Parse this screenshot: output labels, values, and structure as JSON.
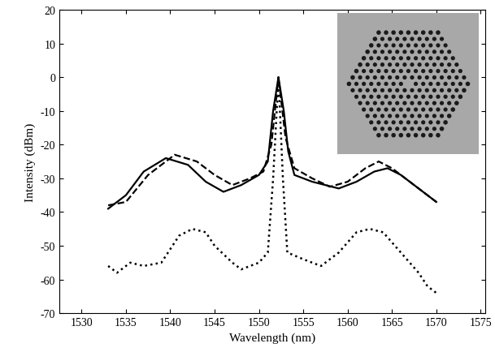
{
  "chart_data": {
    "type": "line",
    "x_label": "Wavelength (nm)",
    "y_label": "Intensity (dBm)",
    "xlim": [
      1527.5,
      1575.5
    ],
    "xticks": [
      1530,
      1535,
      1540,
      1545,
      1550,
      1555,
      1560,
      1565,
      1570,
      1575
    ],
    "ylim": [
      -70,
      20
    ],
    "yticks": [
      -70,
      -60,
      -50,
      -40,
      -30,
      -20,
      -10,
      0,
      10,
      20
    ],
    "grid": false,
    "series": [
      {
        "color": "#000000",
        "line_style": "solid",
        "x": [
          1533,
          1535,
          1537,
          1539.5,
          1542,
          1544,
          1546,
          1548,
          1550,
          1551,
          1551.6,
          1552.2,
          1552.8,
          1553.3,
          1554,
          1556,
          1559,
          1561,
          1563,
          1564.5,
          1566,
          1568,
          1570
        ],
        "values": [
          -39,
          -35,
          -28,
          -24,
          -26,
          -31,
          -34,
          -32,
          -29,
          -25,
          -10,
          0,
          -10,
          -22,
          -29,
          -31,
          -33,
          -31,
          -28,
          -27,
          -29,
          -33,
          -37
        ]
      },
      {
        "color": "#000000",
        "line_style": "dashed",
        "x": [
          1533,
          1535,
          1537.5,
          1540.5,
          1543,
          1545,
          1547,
          1549,
          1550.5,
          1551.4,
          1552.2,
          1553,
          1554,
          1556,
          1558,
          1560,
          1562,
          1563.5,
          1565,
          1567,
          1570
        ],
        "values": [
          -38,
          -37,
          -29,
          -23,
          -25,
          -29,
          -32,
          -30,
          -28,
          -20,
          0,
          -18,
          -27,
          -30,
          -32.5,
          -31,
          -27,
          -25,
          -27,
          -31,
          -37
        ]
      },
      {
        "color": "#000000",
        "line_style": "dotted",
        "x": [
          1533,
          1534,
          1535.5,
          1537,
          1539,
          1540,
          1541,
          1542.5,
          1544,
          1545,
          1547,
          1548,
          1550,
          1551,
          1551.6,
          1552.2,
          1552.7,
          1553.2,
          1555,
          1557,
          1559,
          1560,
          1561,
          1562.5,
          1564,
          1565,
          1566,
          1567,
          1568,
          1569,
          1570
        ],
        "values": [
          -56,
          -58,
          -55,
          -56,
          -55,
          -51,
          -47,
          -45,
          -46,
          -50,
          -55,
          -57,
          -55,
          -52,
          -30,
          0,
          -30,
          -52,
          -54,
          -56,
          -52,
          -49,
          -46,
          -45,
          -46,
          -49,
          -52,
          -55,
          -58,
          -62,
          -64
        ]
      }
    ]
  }
}
